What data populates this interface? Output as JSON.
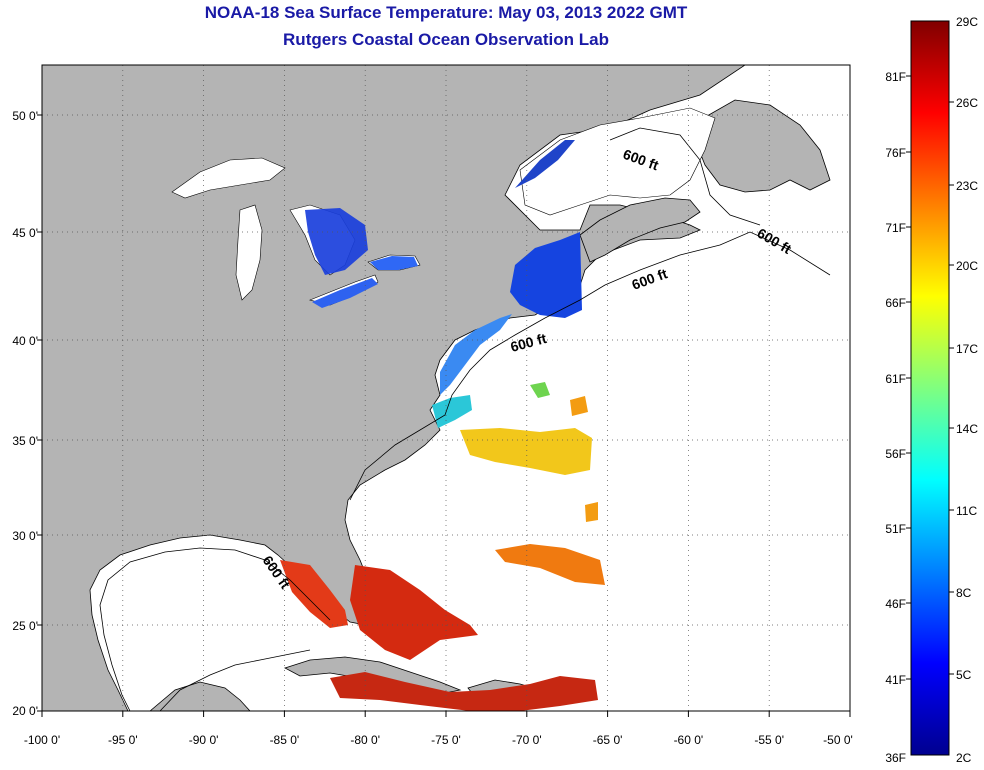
{
  "title": {
    "line1": "NOAA-18 Sea Surface Temperature:  May 03, 2013 2022 GMT",
    "line2": "Rutgers Coastal Ocean Observation Lab"
  },
  "map": {
    "lat_labels": [
      "50 0'",
      "45 0'",
      "40 0'",
      "35 0'",
      "30 0'",
      "25 0'",
      "20 0'"
    ],
    "lon_labels": [
      "-100 0'",
      "-95 0'",
      "-90 0'",
      "-85 0'",
      "-80 0'",
      "-75 0'",
      "-70 0'",
      "-65 0'",
      "-60 0'",
      "-55 0'",
      "-50 0'"
    ],
    "lon_range": [
      -100,
      -50
    ],
    "lat_range": [
      20,
      52.5
    ],
    "contour_labels": [
      "600 ft",
      "600 ft",
      "600 ft",
      "600 ft",
      "600 ft"
    ],
    "colors": {
      "land": "#b4b4b4",
      "ocean": "#ffffff",
      "title": "#1a1aa6"
    }
  },
  "colorbar": {
    "fahrenheit_labels": [
      "81F",
      "76F",
      "71F",
      "66F",
      "61F",
      "56F",
      "51F",
      "46F",
      "41F",
      "36F"
    ],
    "celsius_labels": [
      "29C",
      "26C",
      "23C",
      "20C",
      "17C",
      "14C",
      "11C",
      "8C",
      "5C",
      "2C"
    ]
  }
}
